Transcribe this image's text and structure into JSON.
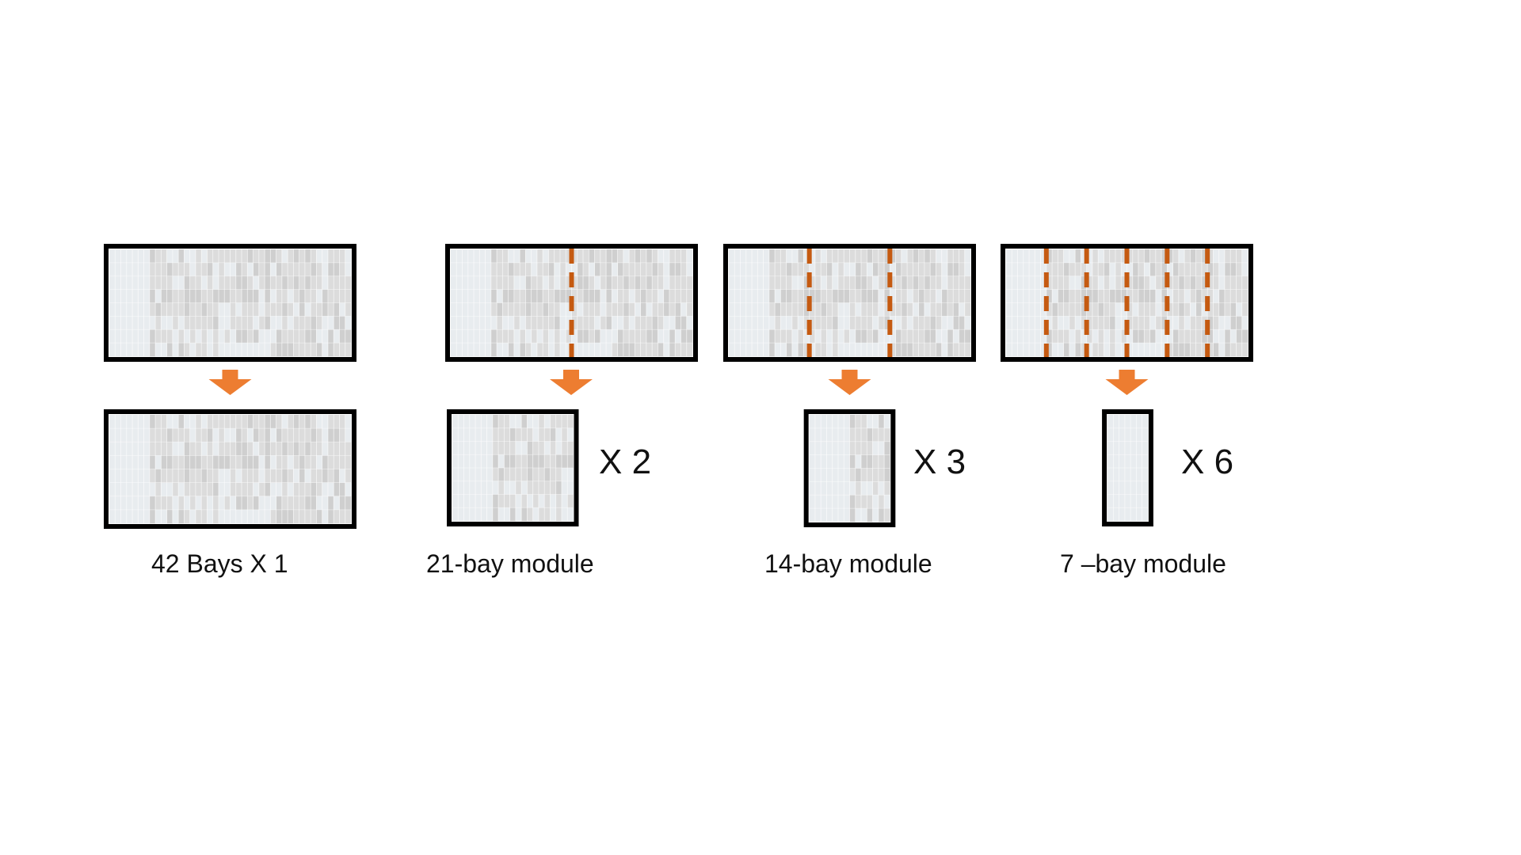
{
  "diagram": {
    "total_bays": 42,
    "colors": {
      "frame": "#000000",
      "divider": "#c55a11",
      "arrow": "#ed7d31",
      "cell_light": "#e8ecef",
      "cell_mid": "#dcdcdc",
      "cell_dark": "#cfcfcf"
    },
    "groups": [
      {
        "id": "g42",
        "module_bays": 42,
        "module_count": 1,
        "caption": "42 Bays X 1",
        "multiplier": ""
      },
      {
        "id": "g21",
        "module_bays": 21,
        "module_count": 2,
        "caption": "21-bay module",
        "multiplier": "X 2"
      },
      {
        "id": "g14",
        "module_bays": 14,
        "module_count": 3,
        "caption": "14-bay module",
        "multiplier": "X 3"
      },
      {
        "id": "g7",
        "module_bays": 7,
        "module_count": 6,
        "caption": "7 –bay module",
        "multiplier": "X 6"
      }
    ]
  }
}
